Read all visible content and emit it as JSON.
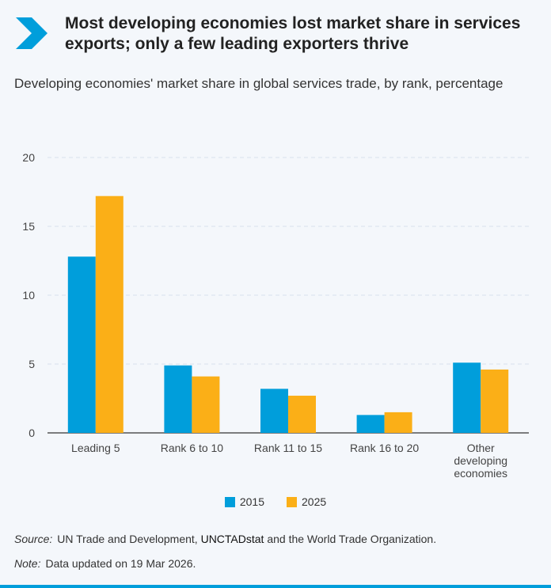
{
  "header": {
    "title": "Most developing economies lost market share in services exports; only a few leading exporters thrive",
    "subtitle": "Developing economies' market share in global services trade, by rank, percentage"
  },
  "colors": {
    "s2015": "#009edb",
    "s2025": "#fbaf17",
    "accent": "#009edb",
    "grid": "#d9e2ec"
  },
  "chart_data": {
    "type": "bar",
    "title": "Developing economies' market share in global services trade, by rank, percentage",
    "categories": [
      "Leading 5",
      "Rank 6 to 10",
      "Rank 11 to 15",
      "Rank 16 to 20",
      "Other developing economies"
    ],
    "category_lines": [
      [
        "Leading 5"
      ],
      [
        "Rank 6 to 10"
      ],
      [
        "Rank 11 to 15"
      ],
      [
        "Rank 16 to 20"
      ],
      [
        "Other",
        "developing",
        "economies"
      ]
    ],
    "series": [
      {
        "name": "2015",
        "values": [
          12.8,
          4.9,
          3.2,
          1.3,
          5.1
        ]
      },
      {
        "name": "2025",
        "values": [
          17.2,
          4.1,
          2.7,
          1.5,
          4.6
        ]
      }
    ],
    "yticks": [
      0,
      5,
      10,
      15,
      20
    ],
    "ylim": [
      0,
      20
    ],
    "xlabel": "",
    "ylabel": "",
    "grid": true,
    "legend_position": "bottom-center"
  },
  "legend": {
    "items": [
      "2015",
      "2025"
    ]
  },
  "footer": {
    "source_label": "Source:",
    "source_text_1": "UN Trade and Development, ",
    "source_link": "UNCTADstat",
    "source_text_2": " and the World Trade Organization.",
    "note_label": "Note:",
    "note_text": "Data updated on 19 Mar 2026."
  }
}
